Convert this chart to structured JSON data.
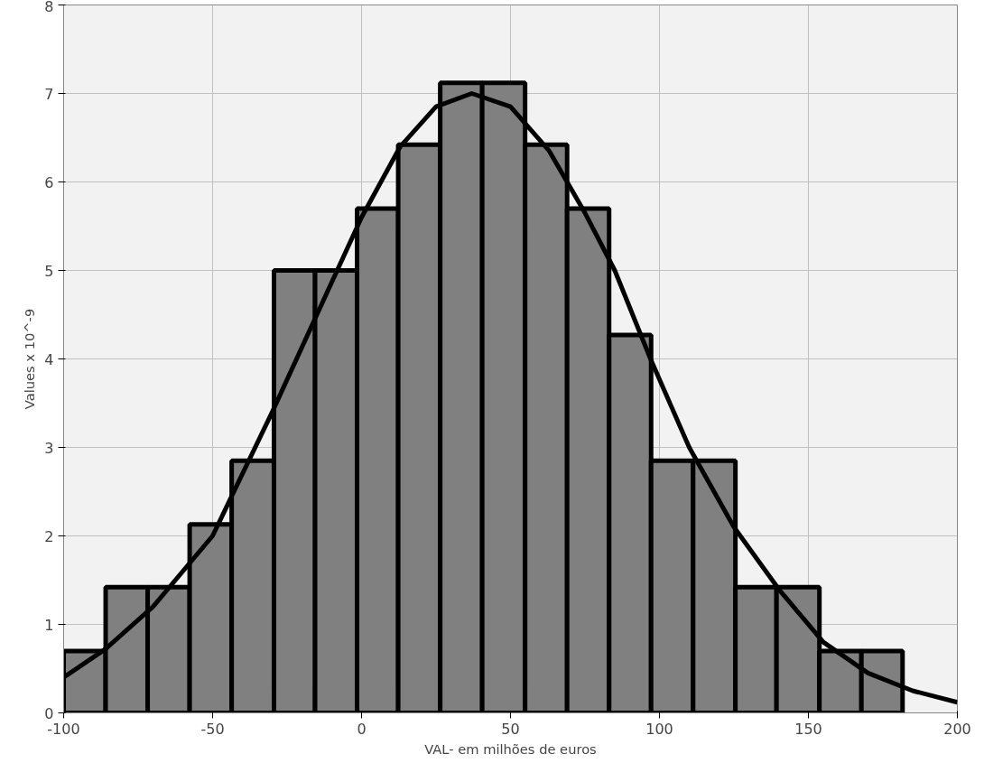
{
  "chart_data": {
    "type": "histogram",
    "xlabel": "VAL- em milhões de euros",
    "ylabel": "Values x 10^-9",
    "xlim": [
      -100,
      200
    ],
    "ylim": [
      0,
      8
    ],
    "xticks": [
      -100,
      -50,
      0,
      50,
      100,
      150,
      200
    ],
    "yticks": [
      0,
      1,
      2,
      3,
      4,
      5,
      6,
      7,
      8
    ],
    "grid": true,
    "series": [
      {
        "type": "histogram",
        "color": "#808080",
        "bins": [
          -100,
          -85.9,
          -71.8,
          -57.7,
          -43.6,
          -29.4,
          -15.6,
          -1.5,
          12.3,
          26.4,
          40.5,
          54.9,
          69.0,
          83.1,
          97.2,
          111.3,
          125.5,
          139.3,
          153.7,
          167.8,
          181.6
        ],
        "values": [
          0.7,
          1.42,
          1.42,
          2.13,
          2.85,
          5.0,
          5.0,
          5.7,
          6.42,
          7.12,
          7.12,
          6.42,
          5.7,
          4.27,
          2.85,
          2.85,
          1.42,
          1.42,
          0.7,
          0.7
        ]
      },
      {
        "type": "line",
        "color": "#000000",
        "x": [
          -100,
          -86,
          -70,
          -50,
          -30,
          -15,
          0,
          13,
          25,
          37,
          50,
          63,
          75,
          85,
          97,
          110,
          125,
          140,
          155,
          170,
          185,
          200
        ],
        "values": [
          0.4,
          0.72,
          1.2,
          2.0,
          3.4,
          4.5,
          5.6,
          6.4,
          6.85,
          7.0,
          6.85,
          6.35,
          5.65,
          5.0,
          4.0,
          3.0,
          2.1,
          1.4,
          0.8,
          0.45,
          0.25,
          0.12
        ]
      }
    ]
  }
}
